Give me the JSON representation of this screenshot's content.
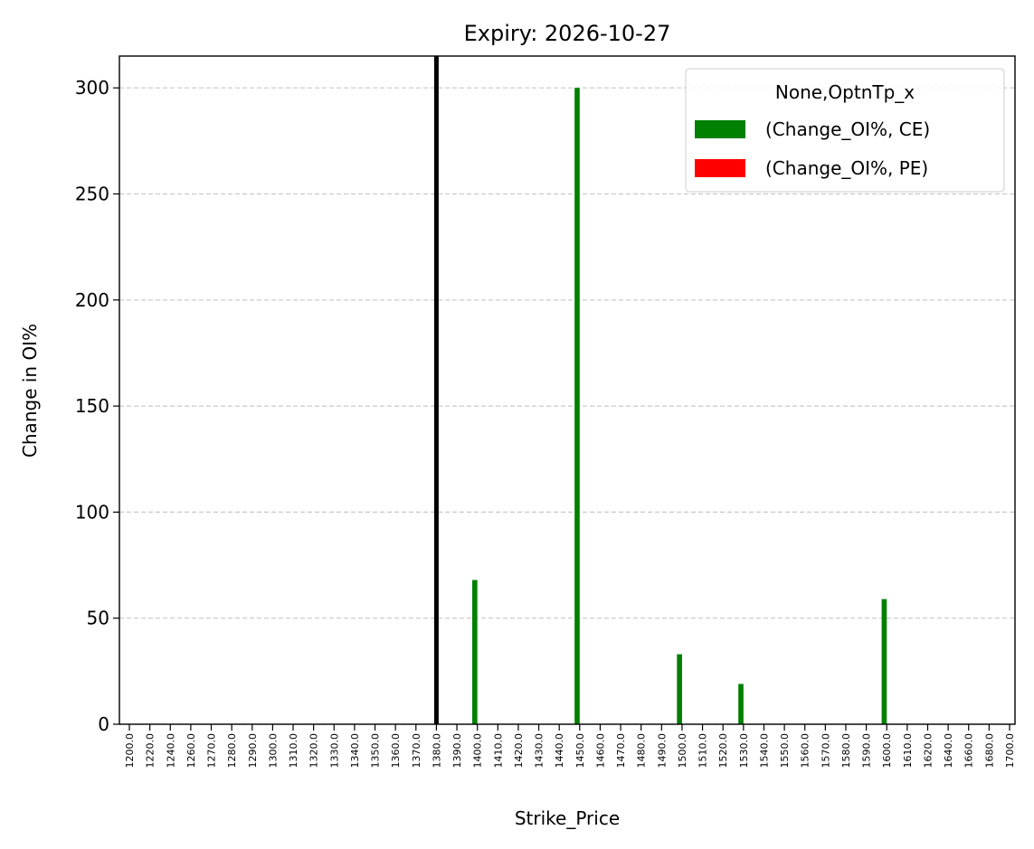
{
  "chart_data": {
    "type": "bar",
    "title": "Expiry: 2026-10-27",
    "x_label": "Strike_Price",
    "y_label": "Change in OI%",
    "categories": [
      "1200.0",
      "1220.0",
      "1240.0",
      "1260.0",
      "1270.0",
      "1280.0",
      "1290.0",
      "1300.0",
      "1310.0",
      "1320.0",
      "1330.0",
      "1340.0",
      "1350.0",
      "1360.0",
      "1370.0",
      "1380.0",
      "1390.0",
      "1400.0",
      "1410.0",
      "1420.0",
      "1430.0",
      "1440.0",
      "1450.0",
      "1460.0",
      "1470.0",
      "1480.0",
      "1490.0",
      "1500.0",
      "1510.0",
      "1520.0",
      "1530.0",
      "1540.0",
      "1550.0",
      "1560.0",
      "1570.0",
      "1580.0",
      "1590.0",
      "1600.0",
      "1610.0",
      "1620.0",
      "1640.0",
      "1660.0",
      "1680.0",
      "1700.0"
    ],
    "series": [
      {
        "name": "(Change_OI%, CE)",
        "color": "#008000",
        "values": [
          0,
          0,
          0,
          0,
          0,
          0,
          0,
          0,
          0,
          0,
          0,
          0,
          0,
          0,
          0,
          0,
          0,
          68,
          0,
          0,
          0,
          0,
          300,
          0,
          0,
          0,
          0,
          33,
          0,
          0,
          19,
          0,
          0,
          0,
          0,
          0,
          0,
          59,
          0,
          0,
          0,
          0,
          0,
          0
        ]
      },
      {
        "name": "(Change_OI%, PE)",
        "color": "#ff0000",
        "values": [
          0,
          0,
          0,
          0,
          0,
          0,
          0,
          0,
          0,
          0,
          0,
          0,
          0,
          0,
          0,
          0,
          0,
          0,
          0,
          0,
          0,
          0,
          0,
          0,
          0,
          0,
          0,
          0,
          0,
          0,
          0,
          0,
          0,
          0,
          0,
          0,
          0,
          0,
          0,
          0,
          0,
          0,
          0,
          0
        ]
      }
    ],
    "legend_title": "None,OptnTp_x",
    "legend": "upper right",
    "marker_line": {
      "category": "1380.0",
      "color": "#000000"
    },
    "ylim": [
      0,
      315
    ],
    "yticks": [
      0,
      50,
      100,
      150,
      200,
      250,
      300
    ],
    "grid": true
  }
}
